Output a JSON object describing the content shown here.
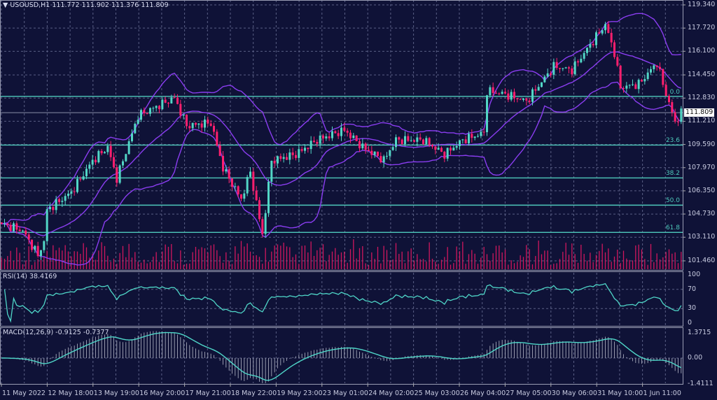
{
  "header": {
    "symbol": "USOUSD,H1",
    "open": "111.772",
    "high": "111.902",
    "low": "111.376",
    "close": "111.809",
    "menu_icon": "triangle-down-icon"
  },
  "price_axis": [
    "119.340",
    "117.720",
    "116.100",
    "114.450",
    "112.830",
    "111.210",
    "109.590",
    "107.970",
    "106.350",
    "104.730",
    "103.110",
    "101.460"
  ],
  "current_price": "111.809",
  "fibonacci": [
    {
      "label": "0.0",
      "price": 112.95
    },
    {
      "label": "23.6",
      "price": 109.55
    },
    {
      "label": "38.2",
      "price": 107.25
    },
    {
      "label": "50.0",
      "price": 105.35
    },
    {
      "label": "61.8",
      "price": 103.45
    }
  ],
  "rsi": {
    "label": "RSI(14) 38.4169",
    "axis": [
      "100",
      "70",
      "30",
      "0"
    ]
  },
  "macd": {
    "label": "MACD(12,26,9) -0.9125 -0.7377",
    "axis": [
      "1.3715",
      "0.00",
      "-1.4111"
    ]
  },
  "time_axis": [
    "11 May 2022",
    "12 May 18:00",
    "13 May 19:00",
    "16 May 20:00",
    "17 May 21:00",
    "18 May 22:00",
    "19 May 23:00",
    "23 May 01:00",
    "24 May 02:00",
    "25 May 03:00",
    "26 May 04:00",
    "27 May 05:00",
    "30 May 06:00",
    "31 May 10:00",
    "1 Jun 11:00"
  ],
  "colors": {
    "background": "#0f1237",
    "bull": "#52d6c6",
    "bear": "#ff1f6e",
    "bands": "#8a3df0",
    "fib": "#4ec9bb",
    "volume": "#d0175e",
    "indicator": "#4fd6c8",
    "grid": "#5a5f85"
  },
  "chart_data": {
    "type": "candlestick",
    "timeframe": "H1",
    "ylim": [
      101.46,
      119.34
    ],
    "approx_close_path": [
      [
        0,
        104.05
      ],
      [
        7,
        103.56
      ],
      [
        12,
        101.85
      ],
      [
        14,
        102.8
      ],
      [
        15,
        105.0
      ],
      [
        23,
        106.25
      ],
      [
        30,
        108.45
      ],
      [
        35,
        109.4
      ],
      [
        38,
        107.2
      ],
      [
        45,
        111.6
      ],
      [
        57,
        112.85
      ],
      [
        61,
        110.9
      ],
      [
        69,
        111.1
      ],
      [
        73,
        107.95
      ],
      [
        79,
        105.76
      ],
      [
        82,
        107.7
      ],
      [
        86,
        103.3
      ],
      [
        89,
        108.45
      ],
      [
        97,
        108.9
      ],
      [
        104,
        109.9
      ],
      [
        113,
        110.6
      ],
      [
        119,
        109.4
      ],
      [
        126,
        108.5
      ],
      [
        130,
        109.9
      ],
      [
        139,
        109.9
      ],
      [
        146,
        108.9
      ],
      [
        152,
        109.9
      ],
      [
        159,
        110.4
      ],
      [
        160,
        113.33
      ],
      [
        166,
        113.1
      ],
      [
        173,
        112.6
      ],
      [
        182,
        115.04
      ],
      [
        188,
        114.8
      ],
      [
        193,
        116.26
      ],
      [
        199,
        117.97
      ],
      [
        202,
        116.0
      ],
      [
        204,
        113.58
      ],
      [
        210,
        113.8
      ],
      [
        216,
        115.3
      ],
      [
        218,
        113.8
      ],
      [
        222,
        111.13
      ],
      [
        224,
        111.8
      ]
    ],
    "indicators": [
      "Bollinger Bands",
      "Volumes",
      "RSI(14)",
      "MACD(12,26,9)"
    ]
  }
}
